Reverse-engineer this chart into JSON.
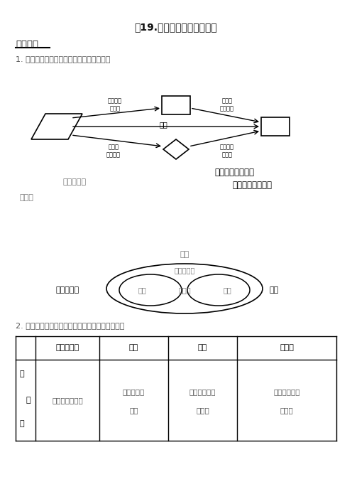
{
  "title": "《19.平行四边形》复习学案",
  "section1": "考点透视",
  "line1": "1. 平行四边形与特殊的平行四边形的关系：",
  "label_pingxing": "平行四边形",
  "label_right_text": "有一个角是直角，",
  "label_right_text2": "且有一组邻边相等",
  "label_zhengfang": "正方形",
  "label_ling": "菱形",
  "arrow_top_left": "有一个角\n是直角",
  "arrow_top_right": "有一组\n邻边相等",
  "arrow_mid": "矩形",
  "arrow_bot_left": "有一组\n邻边相等",
  "arrow_bot_right": "有一个角\n是直角",
  "set_label": "周集合表示",
  "set_outer": "平行四边形",
  "set_left": "矩形",
  "set_center": "正方形",
  "set_right": "菱形",
  "set_suffix": "为：",
  "line2": "2. 平行四边形与特殊的平行四边形的性质与判定：",
  "table_headers": [
    "",
    "平行四边形",
    "矩形",
    "菱形",
    "正方形"
  ],
  "col0_xing": "性",
  "col0_bian": "边",
  "col0_zhi": "质",
  "col1_data": "对边平行且相等",
  "col2_data1": "对边平行且",
  "col2_data2": "相等",
  "col3_data1": "对边平行，四",
  "col3_data2": "边相等",
  "col4_data1": "对边平行，四",
  "col4_data2": "边相等",
  "bg_color": "#ffffff"
}
